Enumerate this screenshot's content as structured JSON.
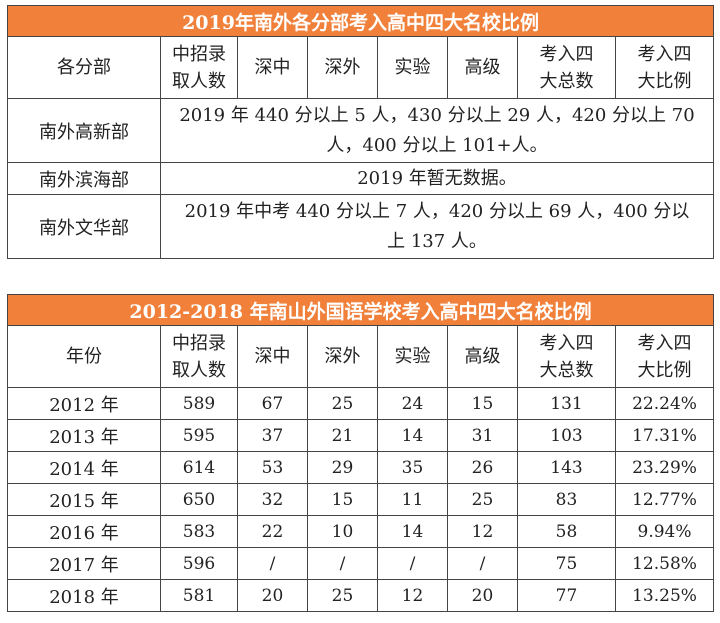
{
  "table1": {
    "title": "2019年南外各分部考入高中四大名校比例",
    "headers": {
      "col0": "各分部",
      "col1a": "中招录",
      "col1b": "取人数",
      "col2": "深中",
      "col3": "深外",
      "col4": "实验",
      "col5": "高级",
      "col6a": "考入四",
      "col6b": "大总数",
      "col7a": "考入四",
      "col7b": "大比例"
    },
    "rows": [
      {
        "name": "南外高新部",
        "line1": "2019 年 440 分以上 5 人，430 分以上 29 人，420 分以上 70",
        "line2": "人，400 分以上 101+人。"
      },
      {
        "name": "南外滨海部",
        "line1": "2019 年暂无数据。"
      },
      {
        "name": "南外文华部",
        "line1": "2019 年中考 440 分以上 7 人，420 分以上 69 人，400 分以",
        "line2": "上 137 人。"
      }
    ]
  },
  "table2": {
    "title": "2012-2018 年南山外国语学校考入高中四大名校比例",
    "headers": {
      "col0": "年份",
      "col1a": "中招录",
      "col1b": "取人数",
      "col2": "深中",
      "col3": "深外",
      "col4": "实验",
      "col5": "高级",
      "col6a": "考入四",
      "col6b": "大总数",
      "col7a": "考入四",
      "col7b": "大比例"
    },
    "rows": [
      {
        "year": "2012 年",
        "enroll": "589",
        "sz": "67",
        "sw": "25",
        "sy": "24",
        "gj": "15",
        "total": "131",
        "ratio": "22.24%"
      },
      {
        "year": "2013 年",
        "enroll": "595",
        "sz": "37",
        "sw": "21",
        "sy": "14",
        "gj": "31",
        "total": "103",
        "ratio": "17.31%"
      },
      {
        "year": "2014 年",
        "enroll": "614",
        "sz": "53",
        "sw": "29",
        "sy": "35",
        "gj": "26",
        "total": "143",
        "ratio": "23.29%"
      },
      {
        "year": "2015 年",
        "enroll": "650",
        "sz": "32",
        "sw": "15",
        "sy": "11",
        "gj": "25",
        "total": "83",
        "ratio": "12.77%"
      },
      {
        "year": "2016 年",
        "enroll": "583",
        "sz": "22",
        "sw": "10",
        "sy": "14",
        "gj": "12",
        "total": "58",
        "ratio": "9.94%"
      },
      {
        "year": "2017 年",
        "enroll": "596",
        "sz": "/",
        "sw": "/",
        "sy": "/",
        "gj": "/",
        "total": "75",
        "ratio": "12.58%"
      },
      {
        "year": "2018 年",
        "enroll": "581",
        "sz": "20",
        "sw": "25",
        "sy": "12",
        "gj": "20",
        "total": "77",
        "ratio": "13.25%"
      }
    ]
  }
}
